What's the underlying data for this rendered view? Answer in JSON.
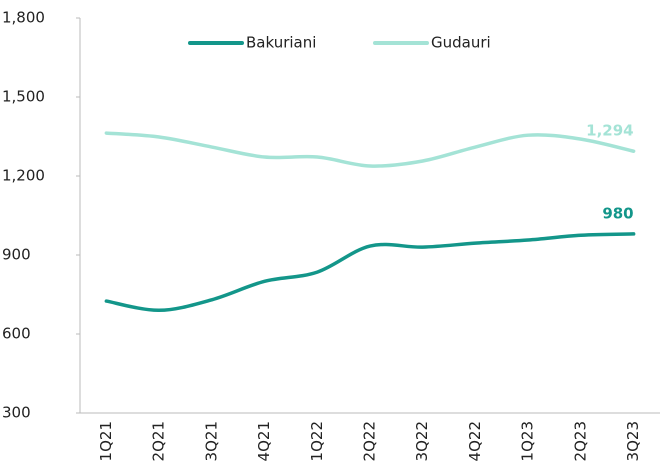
{
  "chart_data": {
    "type": "line",
    "categories": [
      "1Q21",
      "2Q21",
      "3Q21",
      "4Q21",
      "1Q22",
      "2Q22",
      "3Q22",
      "4Q22",
      "1Q23",
      "2Q23",
      "3Q23"
    ],
    "series": [
      {
        "name": "Bakuriani",
        "color": "#13968a",
        "values": [
          725,
          690,
          730,
          800,
          835,
          934,
          930,
          945,
          957,
          975,
          980
        ],
        "value_labels": [
          null,
          null,
          null,
          null,
          null,
          null,
          null,
          null,
          null,
          null,
          "980"
        ]
      },
      {
        "name": "Gudauri",
        "color": "#a4e3d6",
        "values": [
          1363,
          1348,
          1310,
          1272,
          1272,
          1238,
          1257,
          1310,
          1355,
          1340,
          1294
        ],
        "value_labels": [
          null,
          null,
          null,
          null,
          null,
          null,
          null,
          null,
          null,
          null,
          "1,294"
        ]
      }
    ],
    "ylim": [
      300,
      1800
    ],
    "yticks": [
      300,
      600,
      900,
      {
        "value": 1200,
        "label": "1,200"
      },
      {
        "value": 1500,
        "label": "1,500"
      },
      {
        "value": 1800,
        "label": "1,800"
      }
    ],
    "legend": "top"
  }
}
